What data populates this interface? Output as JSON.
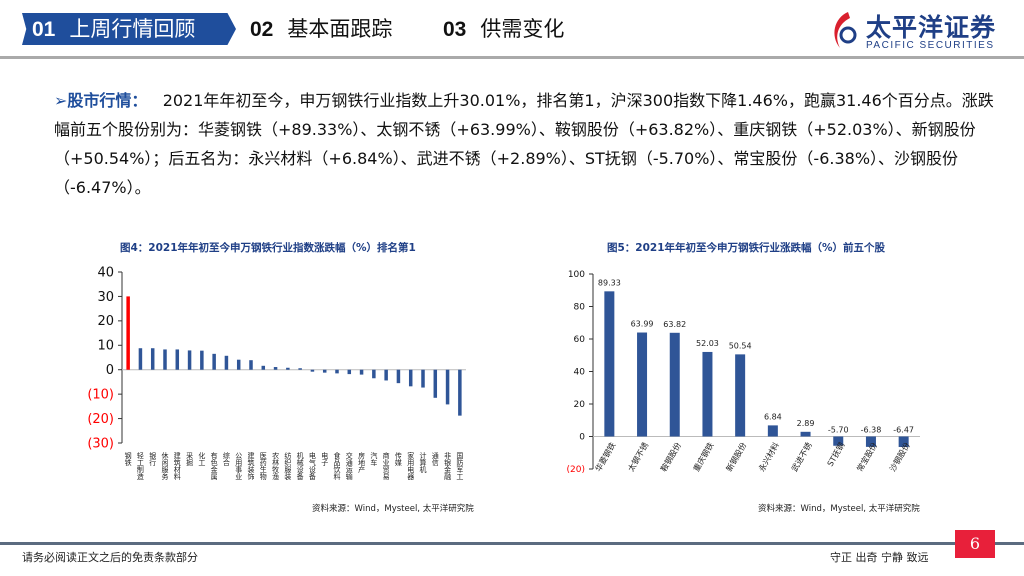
{
  "header": {
    "tabs": [
      {
        "num": "01",
        "label": "上周行情回顾",
        "active": true
      },
      {
        "num": "02",
        "label": "基本面跟踪"
      },
      {
        "num": "03",
        "label": "供需变化"
      }
    ],
    "logo": {
      "cn": "太平洋证券",
      "en": "PACIFIC SECURITIES"
    }
  },
  "body": {
    "heading": "股市行情：",
    "text": "2021年年初至今，申万钢铁行业指数上升30.01%，排名第1，沪深300指数下降1.46%，跑赢31.46个百分点。涨跌幅前五个股份别为：华菱钢铁（+89.33%）、太钢不锈（+63.99%）、鞍钢股份（+63.82%）、重庆钢铁（+52.03%）、新钢股份（+50.54%）；后五名为：永兴材料（+6.84%）、武进不锈（+2.89%）、ST抚钢（-5.70%）、常宝股份（-6.38%）、沙钢股份（-6.47%）。"
  },
  "chart_data": [
    {
      "type": "bar",
      "title": "图4：2021年年初至今申万钢铁行业指数涨跌幅（%）排名第1",
      "source": "资料来源：Wind，Mysteel, 太平洋研究院",
      "ylim": [
        -30,
        40
      ],
      "yticks": [
        "40",
        "30",
        "20",
        "10",
        "0",
        "(10)",
        "(20)",
        "(30)"
      ],
      "highlight_color": "#ff0000",
      "bar_color": "#2f5597",
      "negative_tick_color": "#ff0000",
      "categories": [
        "钢铁",
        "轻工制造",
        "银行",
        "休闲服务",
        "建筑材料",
        "采掘",
        "化工",
        "有色金属",
        "综合",
        "公用事业",
        "建筑装饰",
        "医药生物",
        "农林牧渔",
        "纺织服装",
        "机械设备",
        "电气设备",
        "电子",
        "食品饮料",
        "交通运输",
        "房地产",
        "汽车",
        "商业贸易",
        "传媒",
        "家用电器",
        "计算机",
        "通信",
        "非银金融",
        "国防军工"
      ],
      "values": [
        30.01,
        8.8,
        8.8,
        8.3,
        8.3,
        7.9,
        7.8,
        6.5,
        5.7,
        4.1,
        3.9,
        1.6,
        1.1,
        0.8,
        0.6,
        -0.8,
        -1.2,
        -1.5,
        -1.8,
        -2.0,
        -3.5,
        -4.4,
        -5.5,
        -6.8,
        -7.3,
        -11.5,
        -14.2,
        -18.8
      ]
    },
    {
      "type": "bar",
      "title": "图5：2021年年初至今申万钢铁行业涨跌幅（%）前五个股",
      "source": "资料来源：Wind，Mysteel, 太平洋研究院",
      "ylim": [
        -20,
        100
      ],
      "yticks": [
        "100",
        "80",
        "60",
        "40",
        "20",
        "0",
        "(20)"
      ],
      "bar_color": "#2f5597",
      "categories": [
        "华菱钢铁",
        "太钢不锈",
        "鞍钢股份",
        "重庆钢铁",
        "新钢股份",
        "永兴材料",
        "武进不锈",
        "ST抚钢",
        "常宝股份",
        "沙钢股份"
      ],
      "values": [
        89.33,
        63.99,
        63.82,
        52.03,
        50.54,
        6.84,
        2.89,
        -5.7,
        -6.38,
        -6.47
      ],
      "labels": [
        "89.33",
        "63.99",
        "63.82",
        "52.03",
        "50.54",
        "6.84",
        "2.89",
        "-5.70",
        "-6.38",
        "-6.47"
      ]
    }
  ],
  "footer": {
    "disclaimer": "请务必阅读正文之后的免责条款部分",
    "motto": "守正 出奇 宁静 致远",
    "page": "6"
  }
}
